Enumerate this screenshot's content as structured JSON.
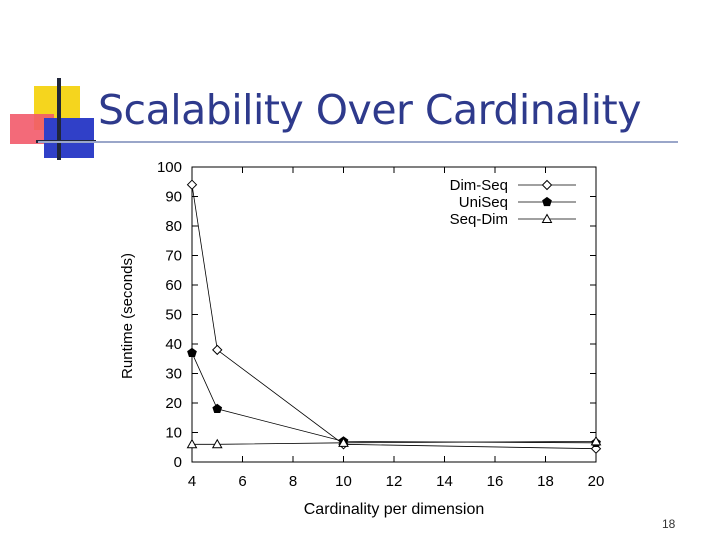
{
  "slide": {
    "title": "Scalability Over Cardinality",
    "page_number": "18"
  },
  "colors": {
    "title": "#2e3a8c",
    "logo_yellow": "#f5d51e",
    "logo_red": "#f25a6a",
    "logo_blue": "#3040c8",
    "line": "#000000"
  },
  "chart_data": {
    "type": "line",
    "xlabel": "Cardinality per dimension",
    "ylabel": "Runtime (seconds)",
    "xlim": [
      4,
      20
    ],
    "ylim": [
      0,
      100
    ],
    "xticks": [
      4,
      6,
      8,
      10,
      12,
      14,
      16,
      18,
      20
    ],
    "yticks": [
      0,
      10,
      20,
      30,
      40,
      50,
      60,
      70,
      80,
      90,
      100
    ],
    "grid": false,
    "legend_position": "top-right",
    "series": [
      {
        "name": "Dim-Seq",
        "marker": "diamond-open",
        "x": [
          4,
          5,
          10,
          20
        ],
        "y": [
          94,
          38,
          6,
          4.5
        ]
      },
      {
        "name": "UniSeq",
        "marker": "pentagon-filled",
        "x": [
          4,
          5,
          10,
          20
        ],
        "y": [
          37,
          18,
          7,
          6.5
        ]
      },
      {
        "name": "Seq-Dim",
        "marker": "triangle-open",
        "x": [
          4,
          5,
          10,
          20
        ],
        "y": [
          6,
          6,
          6.5,
          7
        ]
      }
    ]
  }
}
